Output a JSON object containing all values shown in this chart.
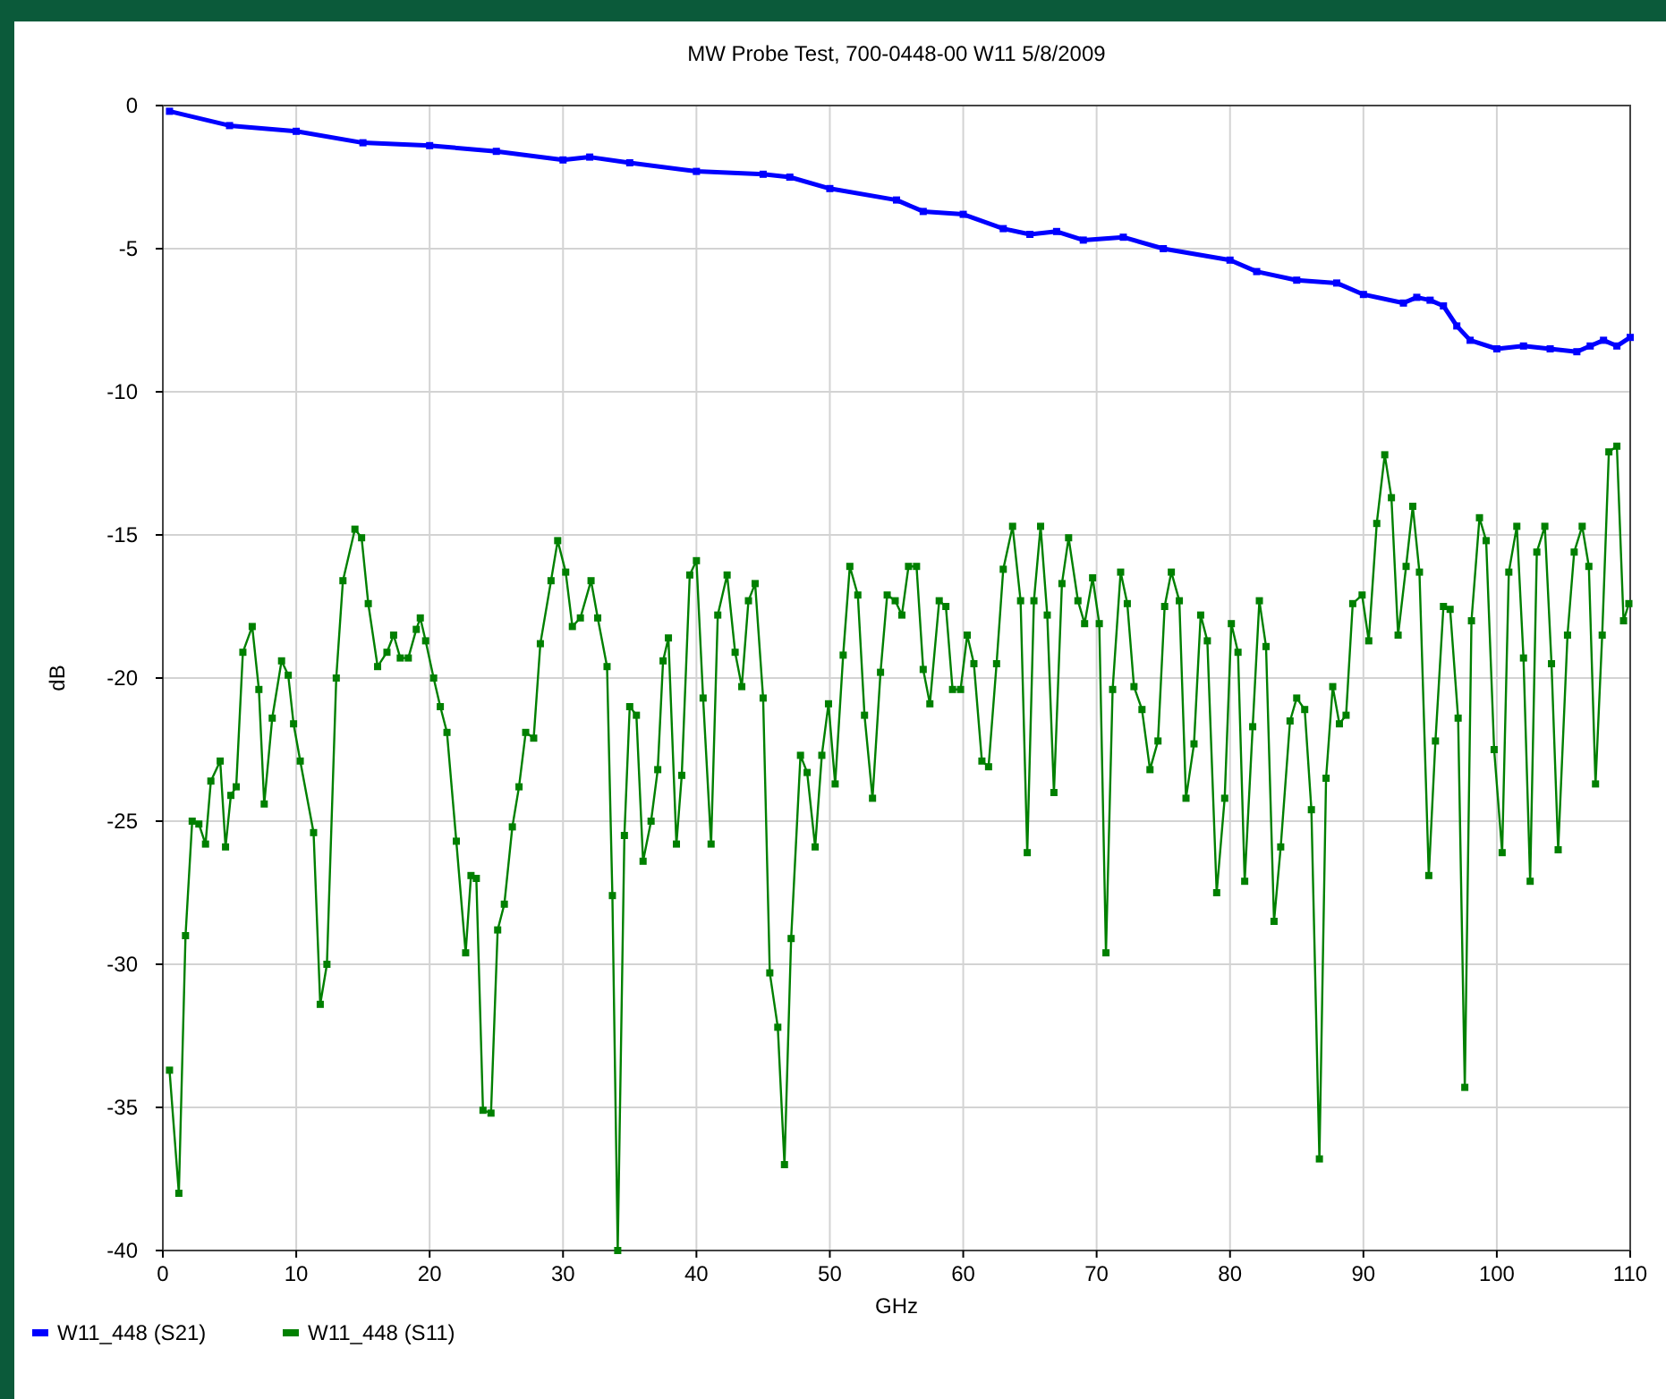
{
  "chart_data": {
    "type": "line",
    "title": "MW Probe Test, 700-0448-00 W11 5/8/2009",
    "xlabel": "GHz",
    "ylabel": "dB",
    "xlim": [
      0,
      110
    ],
    "xticks": [
      0,
      10,
      20,
      30,
      40,
      50,
      60,
      70,
      80,
      90,
      100,
      110
    ],
    "ylim": [
      -40,
      0
    ],
    "yticks": [
      -40,
      -35,
      -30,
      -25,
      -20,
      -15,
      -10,
      -5,
      0
    ],
    "grid": true,
    "legend": "bottom left",
    "marker": "square",
    "line_style": "solid",
    "series": [
      {
        "name": "W11_448 (S21)",
        "color": "#0000ff",
        "x": [
          0.5,
          5,
          10,
          15,
          20,
          25,
          30,
          32,
          35,
          40,
          45,
          47,
          50,
          55,
          57,
          60,
          63,
          65,
          67,
          69,
          72,
          75,
          80,
          82,
          85,
          88,
          90,
          93,
          94,
          95,
          96,
          97,
          98,
          100,
          102,
          104,
          106,
          107,
          108,
          109,
          110
        ],
        "values": [
          -0.2,
          -0.7,
          -0.9,
          -1.3,
          -1.4,
          -1.6,
          -1.9,
          -1.8,
          -2.0,
          -2.3,
          -2.4,
          -2.5,
          -2.9,
          -3.3,
          -3.7,
          -3.8,
          -4.3,
          -4.5,
          -4.4,
          -4.7,
          -4.6,
          -5.0,
          -5.4,
          -5.8,
          -6.1,
          -6.2,
          -6.6,
          -6.9,
          -6.7,
          -6.8,
          -7.0,
          -7.7,
          -8.2,
          -8.5,
          -8.4,
          -8.5,
          -8.6,
          -8.4,
          -8.2,
          -8.4,
          -8.1
        ]
      },
      {
        "name": "W11_448 (S11)",
        "color": "#008000",
        "x": [
          0.5,
          1.2,
          1.7,
          2.2,
          2.7,
          3.2,
          3.6,
          4.3,
          4.7,
          5.1,
          5.5,
          6.0,
          6.7,
          7.2,
          7.6,
          8.2,
          8.9,
          9.4,
          9.8,
          10.3,
          11.3,
          11.8,
          12.3,
          13.0,
          13.5,
          14.4,
          14.9,
          15.4,
          16.1,
          16.8,
          17.3,
          17.8,
          18.4,
          19.0,
          19.3,
          19.7,
          20.3,
          20.8,
          21.3,
          22.0,
          22.7,
          23.1,
          23.5,
          24.0,
          24.6,
          25.1,
          25.6,
          26.2,
          26.7,
          27.2,
          27.8,
          28.3,
          29.1,
          29.6,
          30.2,
          30.7,
          31.3,
          32.1,
          32.6,
          33.3,
          33.7,
          34.1,
          34.6,
          35.0,
          35.5,
          36.0,
          36.6,
          37.1,
          37.5,
          37.9,
          38.5,
          38.9,
          39.5,
          40.0,
          40.5,
          41.1,
          41.6,
          42.3,
          42.9,
          43.4,
          43.9,
          44.4,
          45.0,
          45.5,
          46.1,
          46.6,
          47.1,
          47.8,
          48.3,
          48.9,
          49.4,
          49.9,
          50.4,
          51.0,
          51.5,
          52.1,
          52.6,
          53.2,
          53.8,
          54.3,
          54.9,
          55.4,
          55.9,
          56.5,
          57.0,
          57.5,
          58.2,
          58.7,
          59.2,
          59.8,
          60.3,
          60.8,
          61.4,
          61.9,
          62.5,
          63.0,
          63.7,
          64.3,
          64.8,
          65.3,
          65.8,
          66.3,
          66.8,
          67.4,
          67.9,
          68.6,
          69.1,
          69.7,
          70.2,
          70.7,
          71.2,
          71.8,
          72.3,
          72.8,
          73.4,
          74.0,
          74.6,
          75.1,
          75.6,
          76.2,
          76.7,
          77.3,
          77.8,
          78.3,
          79.0,
          79.6,
          80.1,
          80.6,
          81.1,
          81.7,
          82.2,
          82.7,
          83.3,
          83.8,
          84.5,
          85.0,
          85.6,
          86.1,
          86.7,
          87.2,
          87.7,
          88.2,
          88.7,
          89.2,
          89.9,
          90.4,
          91.0,
          91.6,
          92.1,
          92.6,
          93.2,
          93.7,
          94.2,
          94.9,
          95.4,
          96.0,
          96.5,
          97.1,
          97.6,
          98.1,
          98.7,
          99.2,
          99.8,
          100.4,
          100.9,
          101.5,
          102.0,
          102.5,
          103.0,
          103.6,
          104.1,
          104.6,
          105.3,
          105.8,
          106.4,
          106.9,
          107.4,
          107.9,
          108.4,
          109.0,
          109.5,
          109.9
        ],
        "values": [
          -33.7,
          -38,
          -29,
          -25,
          -25.1,
          -25.8,
          -23.6,
          -22.9,
          -25.9,
          -24.1,
          -23.8,
          -19.1,
          -18.2,
          -20.4,
          -24.4,
          -21.4,
          -19.4,
          -19.9,
          -21.6,
          -22.9,
          -25.4,
          -31.4,
          -30,
          -20,
          -16.6,
          -14.8,
          -15.1,
          -17.4,
          -19.6,
          -19.1,
          -18.5,
          -19.3,
          -19.3,
          -18.3,
          -17.9,
          -18.7,
          -20,
          -21,
          -21.9,
          -25.7,
          -29.6,
          -26.9,
          -27,
          -35.1,
          -35.2,
          -28.8,
          -27.9,
          -25.2,
          -23.8,
          -21.9,
          -22.1,
          -18.8,
          -16.6,
          -15.2,
          -16.3,
          -18.2,
          -17.9,
          -16.6,
          -17.9,
          -19.6,
          -27.6,
          -40,
          -25.5,
          -21,
          -21.3,
          -26.4,
          -25,
          -23.2,
          -19.4,
          -18.6,
          -25.8,
          -23.4,
          -16.4,
          -15.9,
          -20.7,
          -25.8,
          -17.8,
          -16.4,
          -19.1,
          -20.3,
          -17.3,
          -16.7,
          -20.7,
          -30.3,
          -32.2,
          -37,
          -29.1,
          -22.7,
          -23.3,
          -25.9,
          -22.7,
          -20.9,
          -23.7,
          -19.2,
          -16.1,
          -17.1,
          -21.3,
          -24.2,
          -19.8,
          -17.1,
          -17.3,
          -17.8,
          -16.1,
          -16.1,
          -19.7,
          -20.9,
          -17.3,
          -17.5,
          -20.4,
          -20.4,
          -18.5,
          -19.5,
          -22.9,
          -23.1,
          -19.5,
          -16.2,
          -14.7,
          -17.3,
          -26.1,
          -17.3,
          -14.7,
          -17.8,
          -24,
          -16.7,
          -15.1,
          -17.3,
          -18.1,
          -16.5,
          -18.1,
          -29.6,
          -20.4,
          -16.3,
          -17.4,
          -20.3,
          -21.1,
          -23.2,
          -22.2,
          -17.5,
          -16.3,
          -17.3,
          -24.2,
          -22.3,
          -17.8,
          -18.7,
          -27.5,
          -24.2,
          -18.1,
          -19.1,
          -27.1,
          -21.7,
          -17.3,
          -18.9,
          -28.5,
          -25.9,
          -21.5,
          -20.7,
          -21.1,
          -24.6,
          -36.8,
          -23.5,
          -20.3,
          -21.6,
          -21.3,
          -17.4,
          -17.1,
          -18.7,
          -14.6,
          -12.2,
          -13.7,
          -18.5,
          -16.1,
          -14,
          -16.3,
          -26.9,
          -22.2,
          -17.5,
          -17.6,
          -21.4,
          -34.3,
          -18,
          -14.4,
          -15.2,
          -22.5,
          -26.1,
          -16.3,
          -14.7,
          -19.3,
          -27.1,
          -15.6,
          -14.7,
          -19.5,
          -26,
          -18.5,
          -15.6,
          -14.7,
          -16.1,
          -23.7,
          -18.5,
          -12.1,
          -11.9,
          -18,
          -17.4
        ]
      }
    ]
  }
}
